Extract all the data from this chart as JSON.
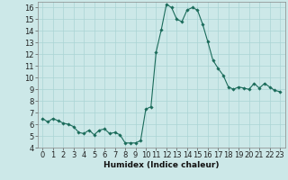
{
  "x": [
    0,
    0.5,
    1,
    1.5,
    2,
    2.5,
    3,
    3.5,
    4,
    4.5,
    5,
    5.5,
    6,
    6.5,
    7,
    7.5,
    8,
    8.5,
    9,
    9.5,
    10,
    10.5,
    11,
    11.5,
    12,
    12.5,
    13,
    13.5,
    14,
    14.5,
    15,
    15.5,
    16,
    16.5,
    17,
    17.5,
    18,
    18.5,
    19,
    19.5,
    20,
    20.5,
    21,
    21.5,
    22,
    22.5,
    23
  ],
  "y": [
    6.5,
    6.2,
    6.5,
    6.3,
    6.1,
    6.0,
    5.8,
    5.3,
    5.2,
    5.5,
    5.1,
    5.5,
    5.6,
    5.2,
    5.3,
    5.1,
    4.4,
    4.4,
    4.4,
    4.6,
    7.3,
    7.5,
    12.2,
    14.1,
    16.3,
    16.0,
    15.0,
    14.8,
    15.8,
    16.0,
    15.8,
    14.6,
    13.1,
    11.5,
    10.8,
    10.2,
    9.2,
    9.0,
    9.2,
    9.1,
    9.0,
    9.5,
    9.1,
    9.5,
    9.2,
    8.9,
    8.8
  ],
  "xlabel": "Humidex (Indice chaleur)",
  "xlim": [
    -0.5,
    23.5
  ],
  "ylim": [
    4,
    16.5
  ],
  "yticks": [
    4,
    5,
    6,
    7,
    8,
    9,
    10,
    11,
    12,
    13,
    14,
    15,
    16
  ],
  "xticks": [
    0,
    1,
    2,
    3,
    4,
    5,
    6,
    7,
    8,
    9,
    10,
    11,
    12,
    13,
    14,
    15,
    16,
    17,
    18,
    19,
    20,
    21,
    22,
    23
  ],
  "line_color": "#1a6b5a",
  "marker": "D",
  "marker_size": 1.8,
  "bg_color": "#cce8e8",
  "grid_color": "#aad4d4",
  "axis_label_fontsize": 6.5,
  "tick_fontsize": 6.0
}
